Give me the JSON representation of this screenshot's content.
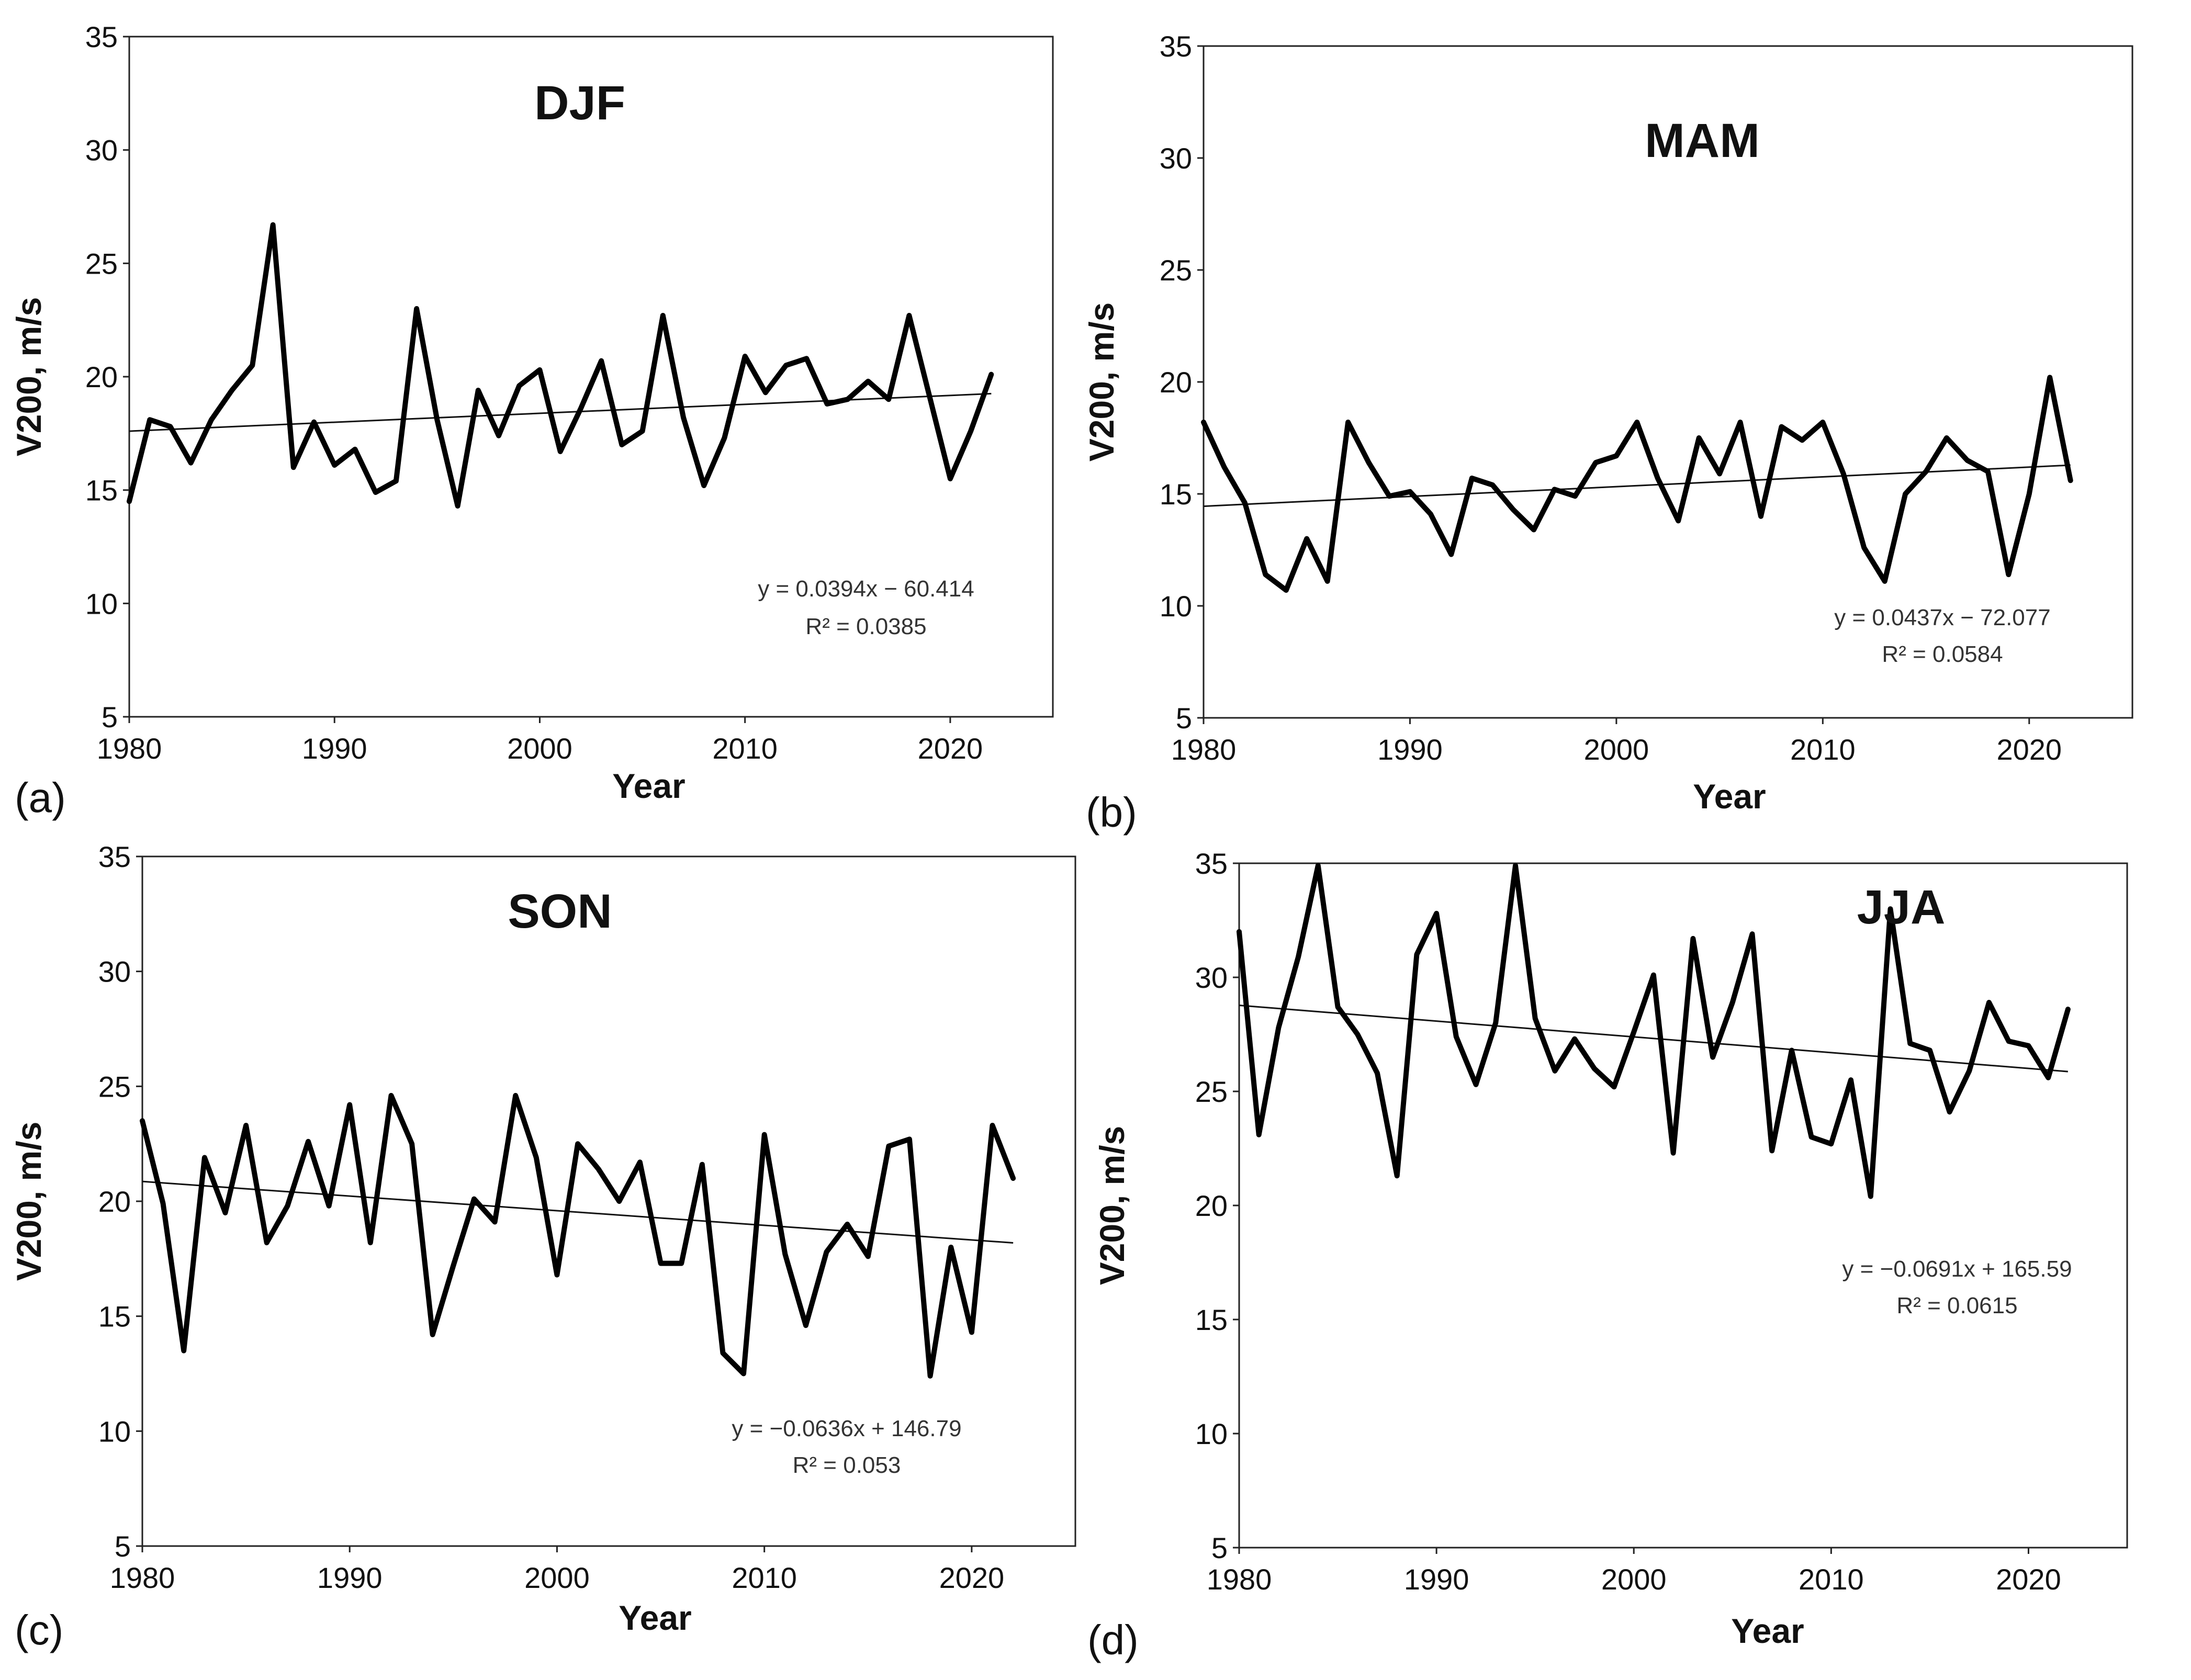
{
  "chart_data": [
    {
      "type": "line",
      "panel_label": "(a)",
      "title": "DJF",
      "xlabel": "Year",
      "ylabel": "V200, m/s",
      "xlim": [
        1980,
        2025
      ],
      "ylim": [
        5,
        35
      ],
      "xticks": [
        "1980",
        "1990",
        "2000",
        "2010",
        "2020"
      ],
      "yticks": [
        "5",
        "10",
        "15",
        "20",
        "25",
        "30",
        "35"
      ],
      "grid": false,
      "series": [
        {
          "name": "V200",
          "x": [
            1980,
            1981,
            1982,
            1983,
            1984,
            1985,
            1986,
            1987,
            1988,
            1989,
            1990,
            1991,
            1992,
            1993,
            1994,
            1995,
            1996,
            1997,
            1998,
            1999,
            2000,
            2001,
            2002,
            2003,
            2004,
            2005,
            2006,
            2007,
            2008,
            2009,
            2010,
            2011,
            2012,
            2013,
            2014,
            2015,
            2016,
            2017,
            2018,
            2019,
            2020,
            2021,
            2022
          ],
          "values": [
            14.5,
            18.1,
            17.8,
            16.2,
            18.1,
            19.4,
            20.5,
            26.7,
            16.0,
            18.0,
            16.1,
            16.8,
            14.9,
            15.4,
            23.0,
            18.1,
            14.3,
            19.4,
            17.4,
            19.6,
            20.3,
            16.7,
            18.6,
            20.7,
            17.0,
            17.6,
            22.7,
            18.2,
            15.2,
            17.3,
            20.9,
            19.3,
            20.5,
            20.8,
            18.8,
            19.0,
            19.8,
            19.0,
            22.7,
            19.1,
            15.5,
            17.6,
            20.1
          ]
        }
      ],
      "trend": {
        "slope": 0.0394,
        "intercept": -60.414
      },
      "equation": "y = 0.0394x − 60.414",
      "r2": "R² = 0.0385"
    },
    {
      "type": "line",
      "panel_label": "(b)",
      "title": "MAM",
      "xlabel": "Year",
      "ylabel": "V200, m/s",
      "xlim": [
        1980,
        2025
      ],
      "ylim": [
        5,
        35
      ],
      "xticks": [
        "1980",
        "1990",
        "2000",
        "2010",
        "2020"
      ],
      "yticks": [
        "5",
        "10",
        "15",
        "20",
        "25",
        "30",
        "35"
      ],
      "grid": false,
      "series": [
        {
          "name": "V200",
          "x": [
            1980,
            1981,
            1982,
            1983,
            1984,
            1985,
            1986,
            1987,
            1988,
            1989,
            1990,
            1991,
            1992,
            1993,
            1994,
            1995,
            1996,
            1997,
            1998,
            1999,
            2000,
            2001,
            2002,
            2003,
            2004,
            2005,
            2006,
            2007,
            2008,
            2009,
            2010,
            2011,
            2012,
            2013,
            2014,
            2015,
            2016,
            2017,
            2018,
            2019,
            2020,
            2021,
            2022
          ],
          "values": [
            18.2,
            16.2,
            14.6,
            11.4,
            10.7,
            13.0,
            11.1,
            18.2,
            16.4,
            14.9,
            15.1,
            14.1,
            12.3,
            15.7,
            15.4,
            14.3,
            13.4,
            15.2,
            14.9,
            16.4,
            16.7,
            18.2,
            15.7,
            13.8,
            17.5,
            15.9,
            18.2,
            14.0,
            18.0,
            17.4,
            18.2,
            15.9,
            12.6,
            11.1,
            15.0,
            16.0,
            17.5,
            16.5,
            16.0,
            11.4,
            15.0,
            20.2,
            15.6
          ]
        }
      ],
      "trend": {
        "slope": 0.0437,
        "intercept": -72.077
      },
      "equation": "y = 0.0437x − 72.077",
      "r2": "R² = 0.0584"
    },
    {
      "type": "line",
      "panel_label": "(c)",
      "title": "SON",
      "xlabel": "Year",
      "ylabel": "V200, m/s",
      "xlim": [
        1980,
        2025
      ],
      "ylim": [
        5,
        35
      ],
      "xticks": [
        "1980",
        "1990",
        "2000",
        "2010",
        "2020"
      ],
      "yticks": [
        "5",
        "10",
        "15",
        "20",
        "25",
        "30",
        "35"
      ],
      "grid": false,
      "series": [
        {
          "name": "V200",
          "x": [
            1980,
            1981,
            1982,
            1983,
            1984,
            1985,
            1986,
            1987,
            1988,
            1989,
            1990,
            1991,
            1992,
            1993,
            1994,
            1995,
            1996,
            1997,
            1998,
            1999,
            2000,
            2001,
            2002,
            2003,
            2004,
            2005,
            2006,
            2007,
            2008,
            2009,
            2010,
            2011,
            2012,
            2013,
            2014,
            2015,
            2016,
            2017,
            2018,
            2019,
            2020,
            2021,
            2022
          ],
          "values": [
            23.5,
            19.9,
            13.5,
            21.9,
            19.5,
            23.3,
            18.2,
            19.8,
            22.6,
            19.8,
            24.2,
            18.2,
            24.6,
            22.5,
            14.2,
            17.2,
            20.1,
            19.1,
            24.6,
            21.9,
            16.8,
            22.5,
            21.4,
            20.0,
            21.7,
            17.3,
            17.3,
            21.6,
            13.4,
            12.5,
            22.9,
            17.7,
            14.6,
            17.8,
            19.0,
            17.6,
            22.4,
            22.7,
            12.4,
            18.0,
            14.3,
            23.3,
            21.0
          ]
        }
      ],
      "trend": {
        "slope": -0.0636,
        "intercept": 146.79
      },
      "equation": "y = −0.0636x + 146.79",
      "r2": "R² = 0.053"
    },
    {
      "type": "line",
      "panel_label": "(d)",
      "title": "JJA",
      "xlabel": "Year",
      "ylabel": "V200, m/s",
      "xlim": [
        1980,
        2025
      ],
      "ylim": [
        5,
        35
      ],
      "xticks": [
        "1980",
        "1990",
        "2000",
        "2010",
        "2020"
      ],
      "yticks": [
        "5",
        "10",
        "15",
        "20",
        "25",
        "30",
        "35"
      ],
      "grid": false,
      "series": [
        {
          "name": "V200",
          "x": [
            1980,
            1981,
            1982,
            1983,
            1984,
            1985,
            1986,
            1987,
            1988,
            1989,
            1990,
            1991,
            1992,
            1993,
            1994,
            1995,
            1996,
            1997,
            1998,
            1999,
            2000,
            2001,
            2002,
            2003,
            2004,
            2005,
            2006,
            2007,
            2008,
            2009,
            2010,
            2011,
            2012,
            2013,
            2014,
            2015,
            2016,
            2017,
            2018,
            2019,
            2020,
            2021,
            2022
          ],
          "values": [
            32.0,
            23.1,
            27.8,
            30.9,
            34.9,
            28.7,
            27.5,
            25.8,
            21.3,
            31.0,
            32.8,
            27.4,
            25.3,
            28.0,
            34.9,
            28.2,
            25.9,
            27.3,
            26.0,
            25.2,
            27.6,
            30.1,
            22.3,
            31.7,
            26.5,
            28.9,
            31.9,
            22.4,
            26.8,
            23.0,
            22.7,
            25.5,
            20.4,
            33.0,
            27.1,
            26.8,
            24.1,
            25.9,
            28.9,
            27.2,
            27.0,
            25.6,
            28.6
          ]
        }
      ],
      "trend": {
        "slope": -0.0691,
        "intercept": 165.59
      },
      "equation": "y = −0.0691x + 165.59",
      "r2": "R² = 0.0615"
    }
  ]
}
